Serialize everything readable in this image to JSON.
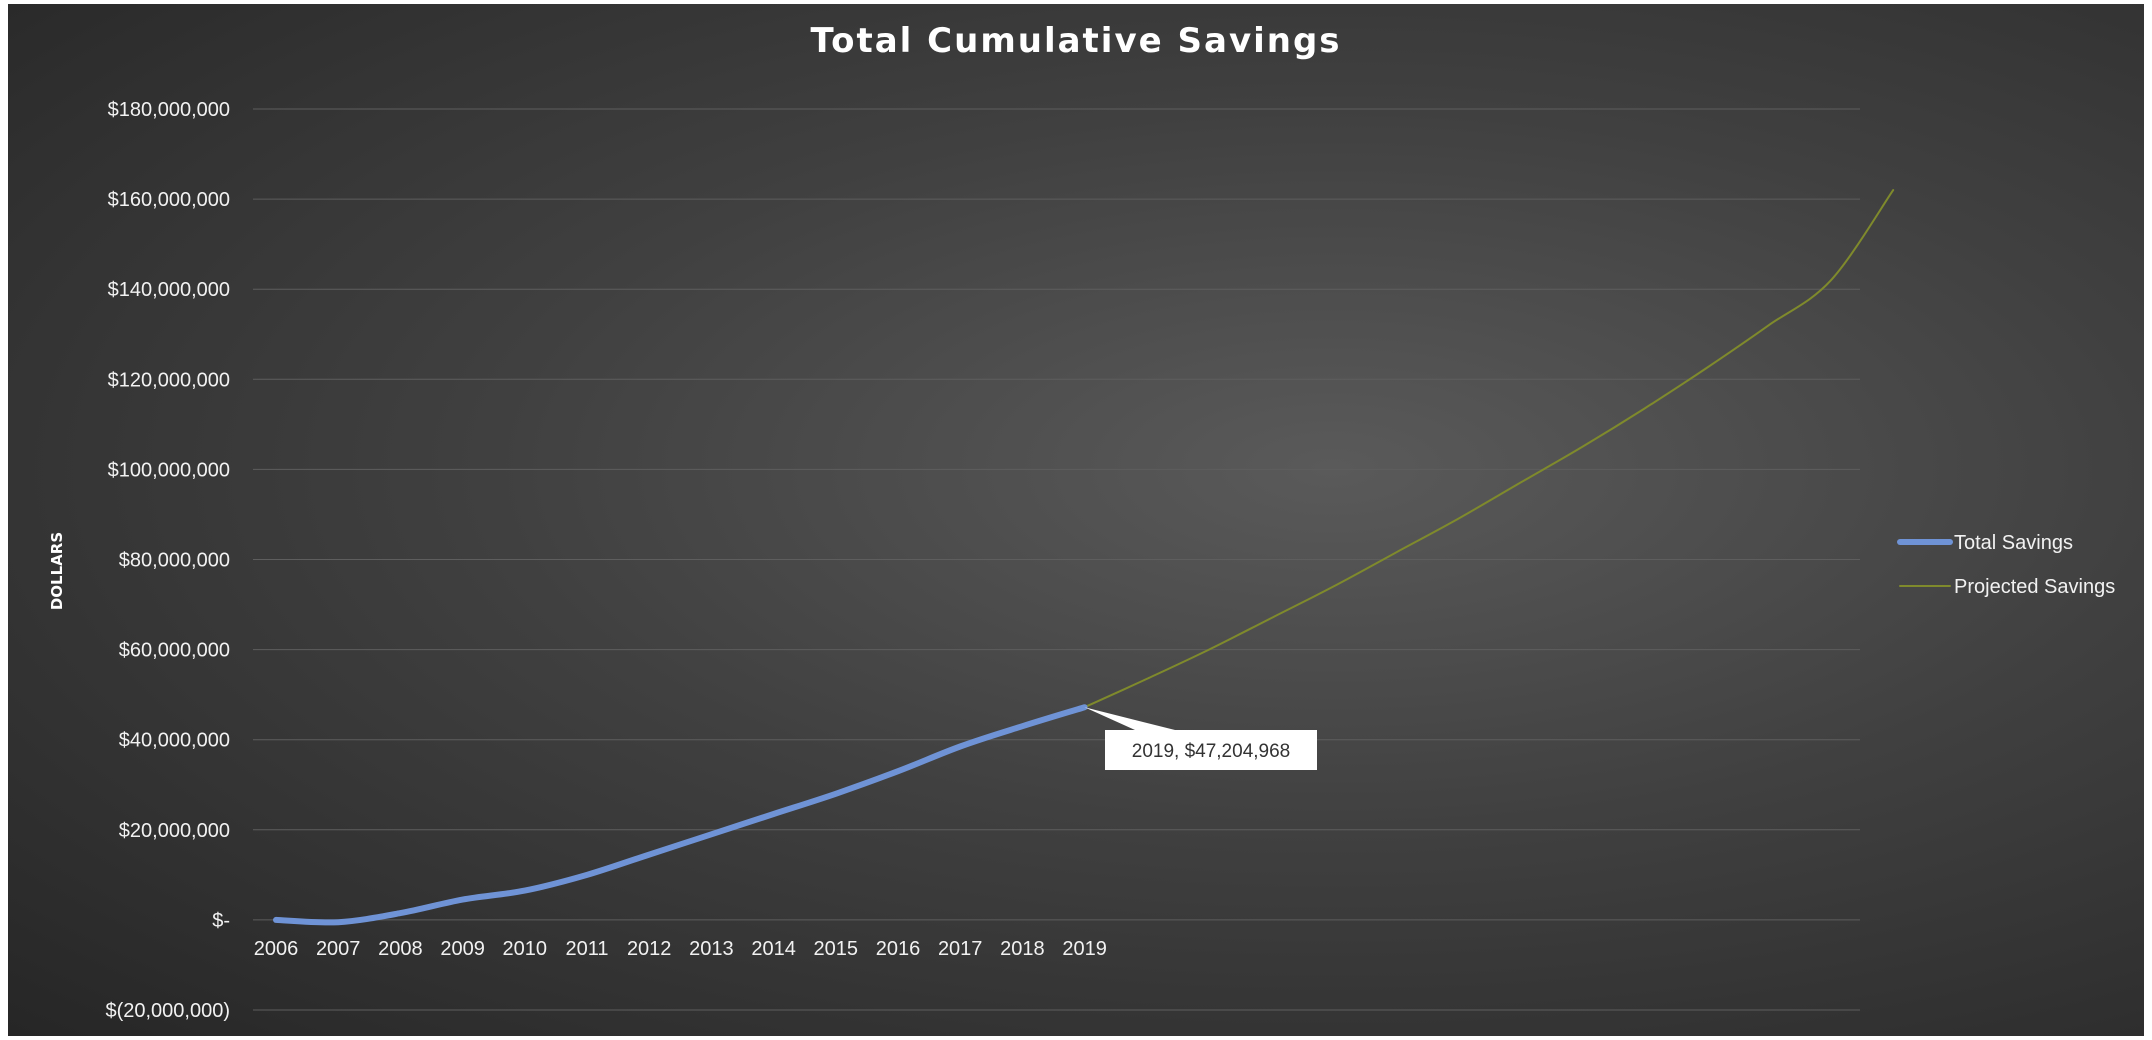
{
  "chart_data": {
    "type": "line",
    "title": "Total Cumulative Savings",
    "xlabel": "",
    "ylabel": "DOLLARS",
    "ylim": [
      -20000000,
      180000000
    ],
    "y_ticks": [
      {
        "value": 180000000,
        "label": "$180,000,000"
      },
      {
        "value": 160000000,
        "label": "$160,000,000"
      },
      {
        "value": 140000000,
        "label": "$140,000,000"
      },
      {
        "value": 120000000,
        "label": "$120,000,000"
      },
      {
        "value": 100000000,
        "label": "$100,000,000"
      },
      {
        "value": 80000000,
        "label": "$80,000,000"
      },
      {
        "value": 60000000,
        "label": "$60,000,000"
      },
      {
        "value": 40000000,
        "label": "$40,000,000"
      },
      {
        "value": 20000000,
        "label": "$20,000,000"
      },
      {
        "value": 0,
        "label": "$-"
      },
      {
        "value": -20000000,
        "label": "$(20,000,000)"
      }
    ],
    "categories": [
      "2006",
      "2007",
      "2008",
      "2009",
      "2010",
      "2011",
      "2012",
      "2013",
      "2014",
      "2015",
      "2016",
      "2017",
      "2018",
      "2019"
    ],
    "x_range": [
      2006,
      2032
    ],
    "grid": true,
    "legend_position": "right",
    "series": [
      {
        "name": "Total Savings",
        "color": "#6f93d6",
        "x": [
          2006,
          2007,
          2008,
          2009,
          2010,
          2011,
          2012,
          2013,
          2014,
          2015,
          2016,
          2017,
          2018,
          2019
        ],
        "values": [
          0,
          -500000,
          1500000,
          4500000,
          6500000,
          10000000,
          14500000,
          19000000,
          23500000,
          28000000,
          33000000,
          38500000,
          43000000,
          47204968
        ]
      },
      {
        "name": "Projected Savings",
        "color": "#7f8a2c",
        "x": [
          2019,
          2020,
          2021,
          2022,
          2023,
          2024,
          2025,
          2026,
          2027,
          2028,
          2029,
          2030,
          2031,
          2032
        ],
        "values": [
          47204968,
          53500000,
          60000000,
          67000000,
          74000000,
          81500000,
          89000000,
          97000000,
          105000000,
          113500000,
          122500000,
          132000000,
          142000000,
          162000000
        ]
      }
    ],
    "annotations": [
      {
        "text": "2019,  $47,204,968",
        "x": 2019,
        "y": 47204968
      }
    ]
  }
}
